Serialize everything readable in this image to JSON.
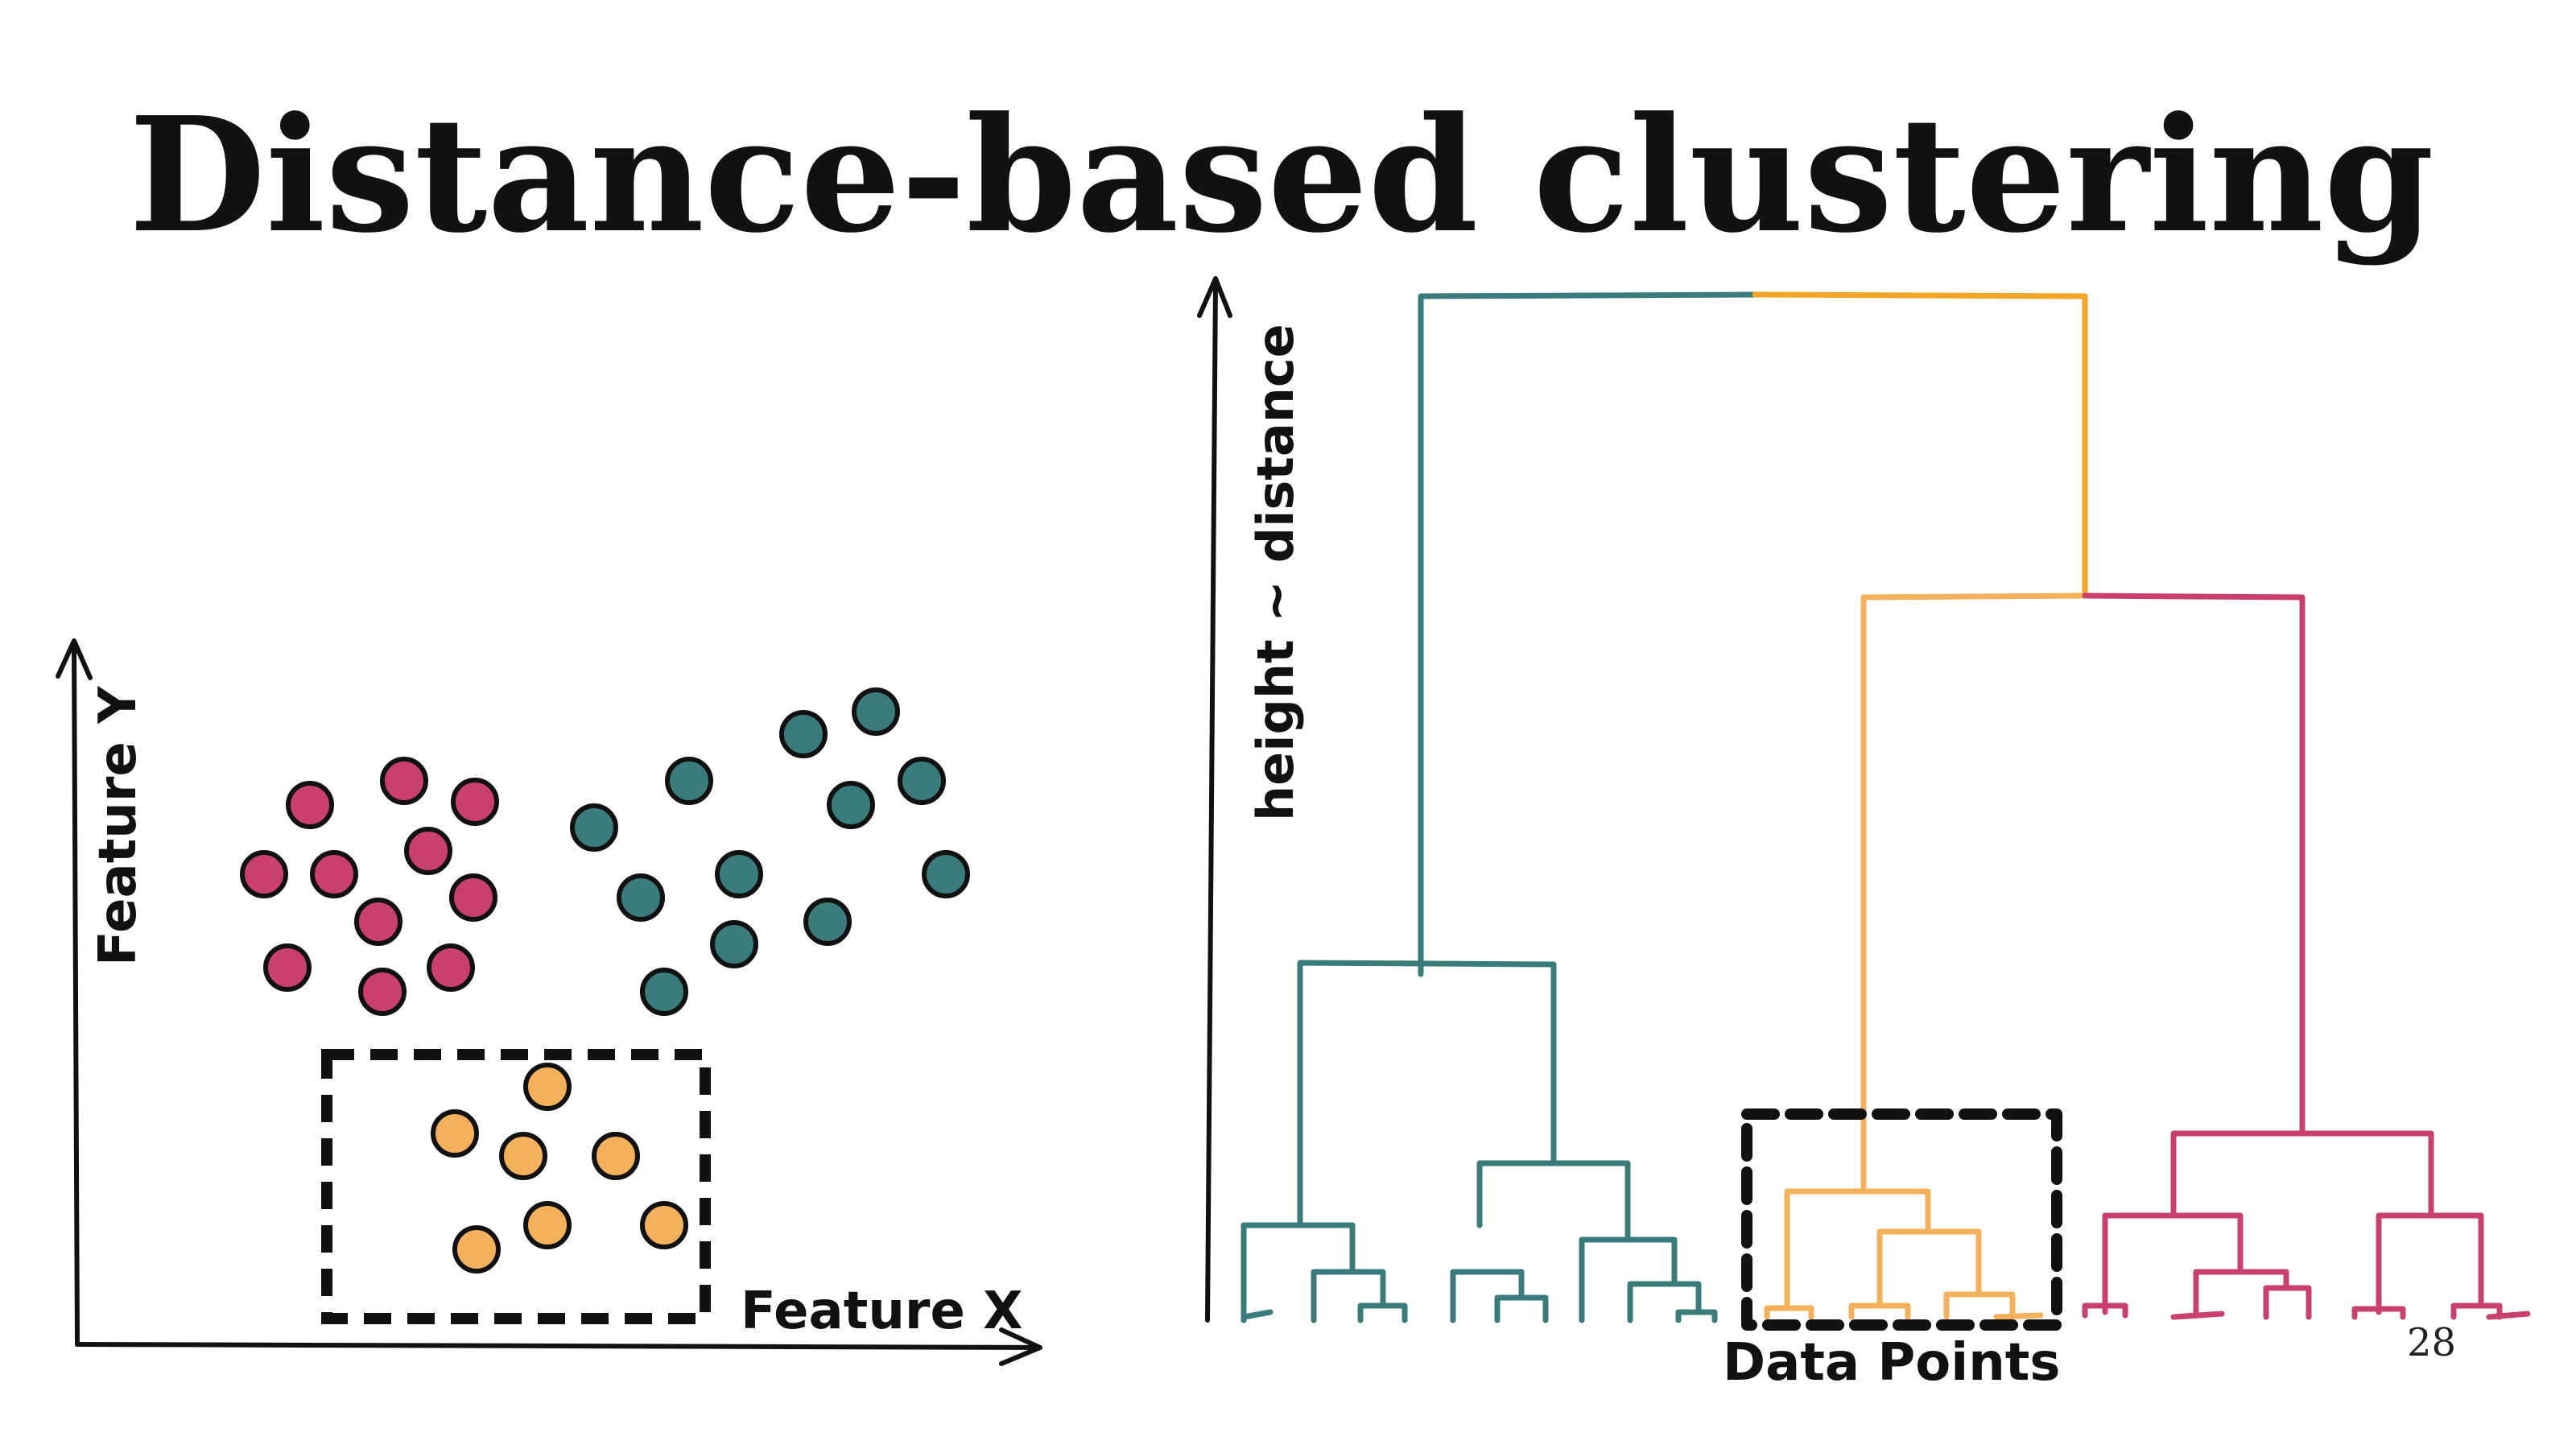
{
  "slide": {
    "title": "Distance-based clustering",
    "page_number": "28"
  },
  "scatter": {
    "x_label": "Feature X",
    "y_label": "Feature Y"
  },
  "dendrogram": {
    "y_label": "height ~ distance",
    "x_label": "Data Points"
  },
  "colors": {
    "pink": "#c9406e",
    "teal": "#3a7b7c",
    "orange": "#f4b05a",
    "orange_top": "#f3a626",
    "ink": "#111111"
  }
}
